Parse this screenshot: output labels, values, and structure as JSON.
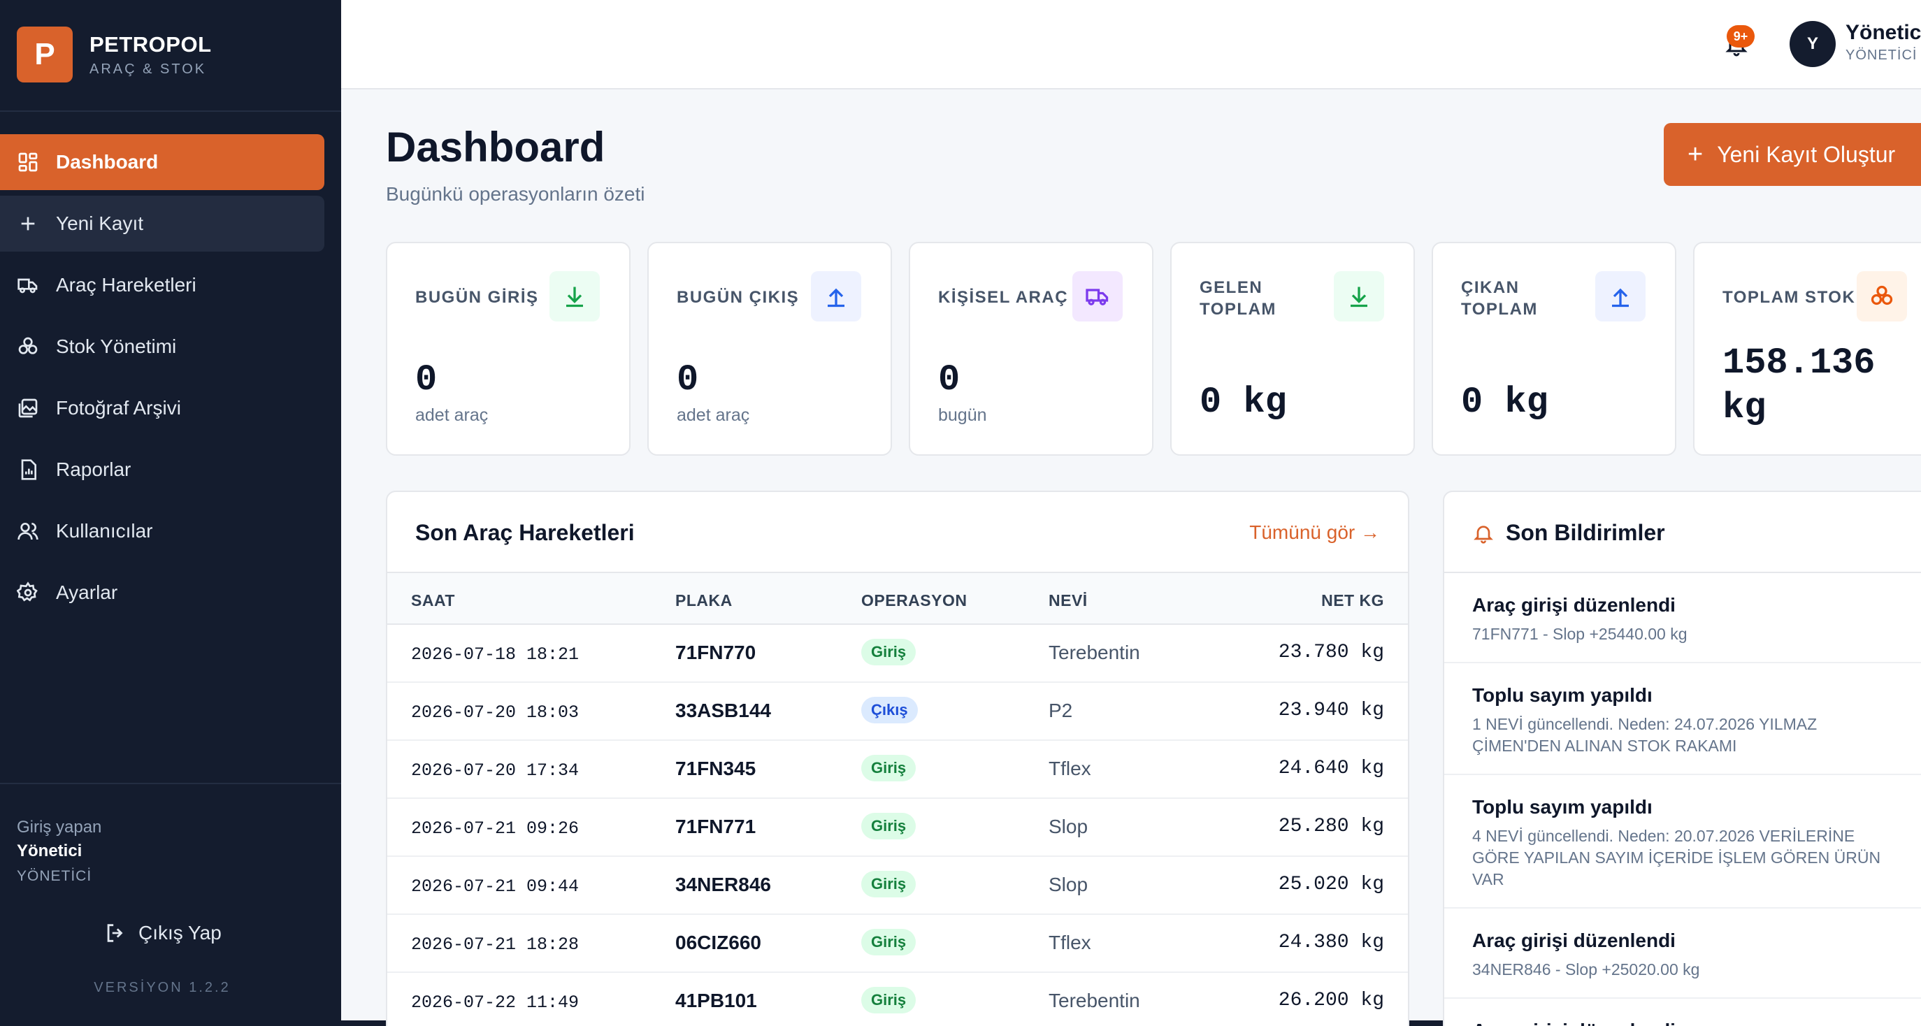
{
  "brand": {
    "logo_letter": "P",
    "name": "PETROPOL",
    "subtitle": "ARAÇ & STOK",
    "accent": "#d9622b"
  },
  "sidebar": {
    "items": [
      {
        "label": "Dashboard",
        "icon": "grid-icon",
        "active": true
      },
      {
        "label": "Yeni Kayıt",
        "icon": "plus-icon"
      },
      {
        "label": "Araç Hareketleri",
        "icon": "truck-icon"
      },
      {
        "label": "Stok Yönetimi",
        "icon": "boxes-icon"
      },
      {
        "label": "Fotoğraf Arşivi",
        "icon": "gallery-icon"
      },
      {
        "label": "Raporlar",
        "icon": "report-icon"
      },
      {
        "label": "Kullanıcılar",
        "icon": "users-icon"
      },
      {
        "label": "Ayarlar",
        "icon": "gear-icon"
      }
    ],
    "user_label": "Giriş yapan",
    "user_name": "Yönetici",
    "user_role": "YÖNETİCİ",
    "logout_label": "Çıkış Yap",
    "version": "VERSİYON 1.2.2"
  },
  "topbar": {
    "notification_badge": "9+",
    "avatar_letter": "Y",
    "user_name": "Yönetici",
    "user_role": "YÖNETİCİ"
  },
  "header": {
    "title": "Dashboard",
    "subtitle": "Bugünkü operasyonların özeti",
    "new_button": "Yeni Kayıt Oluştur"
  },
  "stats": [
    {
      "label": "BUGÜN GİRİŞ",
      "value": "0",
      "unit": "adet araç",
      "icon": "download-icon"
    },
    {
      "label": "BUGÜN ÇIKIŞ",
      "value": "0",
      "unit": "adet araç",
      "icon": "upload-icon"
    },
    {
      "label": "KİŞİSEL ARAÇ",
      "value": "0",
      "unit": "bugün",
      "icon": "truck-icon"
    },
    {
      "label": "GELEN TOPLAM",
      "value": "0 kg",
      "icon": "download-icon"
    },
    {
      "label": "ÇIKAN TOPLAM",
      "value": "0 kg",
      "icon": "upload-icon"
    },
    {
      "label": "TOPLAM STOK",
      "value": "158.136 kg",
      "icon": "boxes-icon"
    }
  ],
  "movements": {
    "title": "Son Araç Hareketleri",
    "see_all": "Tümünü gör →",
    "columns": [
      "SAAT",
      "PLAKA",
      "OPERASYON",
      "NEVİ",
      "NET KG"
    ],
    "rows": [
      {
        "time": "2026-07-18 18:21",
        "plate": "71FN770",
        "op": "Giriş",
        "type": "giris",
        "nevi": "Terebentin",
        "net": "23.780 kg"
      },
      {
        "time": "2026-07-20 18:03",
        "plate": "33ASB144",
        "op": "Çıkış",
        "type": "cikis",
        "nevi": "P2",
        "net": "23.940 kg"
      },
      {
        "time": "2026-07-20 17:34",
        "plate": "71FN345",
        "op": "Giriş",
        "type": "giris",
        "nevi": "Tflex",
        "net": "24.640 kg"
      },
      {
        "time": "2026-07-21 09:26",
        "plate": "71FN771",
        "op": "Giriş",
        "type": "giris",
        "nevi": "Slop",
        "net": "25.280 kg"
      },
      {
        "time": "2026-07-21 09:44",
        "plate": "34NER846",
        "op": "Giriş",
        "type": "giris",
        "nevi": "Slop",
        "net": "25.020 kg"
      },
      {
        "time": "2026-07-21 18:28",
        "plate": "06CIZ660",
        "op": "Giriş",
        "type": "giris",
        "nevi": "Tflex",
        "net": "24.380 kg"
      },
      {
        "time": "2026-07-22 11:49",
        "plate": "41PB101",
        "op": "Giriş",
        "type": "giris",
        "nevi": "Terebentin",
        "net": "26.200 kg"
      }
    ]
  },
  "notifications": {
    "title": "Son Bildirimler",
    "items": [
      {
        "title": "Araç girişi düzenlendi",
        "desc": "71FN771 - Slop +25440.00 kg"
      },
      {
        "title": "Toplu sayım yapıldı",
        "desc": "1 NEVİ güncellendi. Neden: 24.07.2026 YILMAZ ÇİMEN'DEN ALINAN STOK RAKAMI"
      },
      {
        "title": "Toplu sayım yapıldı",
        "desc": "4 NEVİ güncellendi. Neden: 20.07.2026 VERİLERİNE GÖRE YAPILAN SAYIM İÇERİDE İŞLEM GÖREN ÜRÜN VAR"
      },
      {
        "title": "Araç girişi düzenlendi",
        "desc": "34NER846 - Slop +25020.00 kg"
      },
      {
        "title": "Araç girişi düzenlendi",
        "desc": ""
      }
    ]
  }
}
